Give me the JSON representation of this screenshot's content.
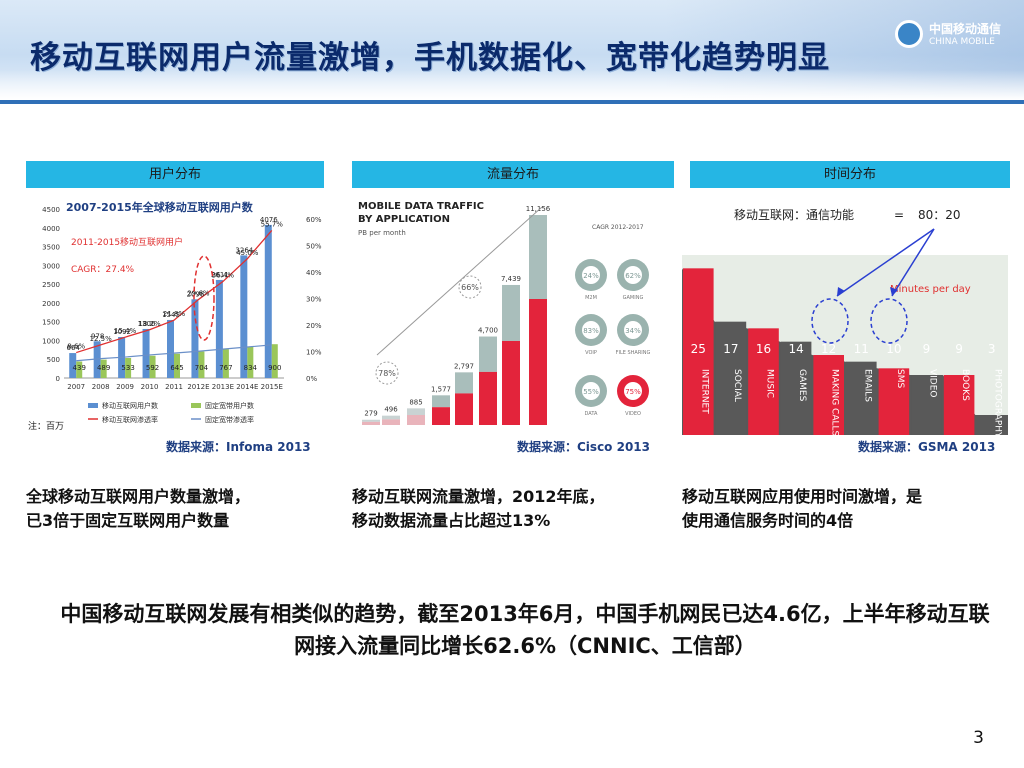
{
  "slide": {
    "title": "移动互联网用户流量激增，手机数据化、宽带化趋势明显",
    "logo_cn": "中国移动通信",
    "logo_en": "CHINA MOBILE",
    "page_number": "3",
    "conclusion": "中国移动互联网发展有相类似的趋势，截至2013年6月，中国手机网民已达4.6亿，上半年移动互联网接入流量同比增长62.6%（CNNIC、工信部）"
  },
  "panels": [
    {
      "head": "用户分布",
      "source": "数据来源：Infoma 2013",
      "caption_line1": "全球移动互联网用户数量激增，",
      "caption_line2": "已3倍于固定互联网用户数量"
    },
    {
      "head": "流量分布",
      "source": "数据来源：Cisco 2013",
      "caption_line1": "移动互联网流量激增，2012年底，",
      "caption_line2": "移动数据流量占比超过13%"
    },
    {
      "head": "时间分布",
      "source": "数据来源：GSMA 2013",
      "caption_line1": "移动互联网应用使用时间激增，是",
      "caption_line2": "使用通信服务时间的4倍"
    }
  ],
  "chart_data": [
    {
      "type": "bar",
      "title": "2007-2015年全球移动互联网用户数",
      "annotation": "2011-2015移动互联网用户",
      "cagr": "CAGR：27.4%",
      "unit_note": "注：百万",
      "categories": [
        "2007",
        "2008",
        "2009",
        "2010",
        "2011",
        "2012E",
        "2013E",
        "2014E",
        "2015E"
      ],
      "ylim": [
        0,
        4500
      ],
      "y_ticks": [
        0,
        500,
        1000,
        1500,
        2000,
        2500,
        3000,
        3500,
        4000,
        4500
      ],
      "y2_ticks": [
        "0%",
        "10%",
        "20%",
        "30%",
        "40%",
        "50%",
        "60%"
      ],
      "series": [
        {
          "name": "移动互联网用户数",
          "values": [
            664,
            978,
            1092,
            1306,
            1545,
            2096,
            2611,
            3264,
            4076
          ],
          "color": "#5b8fd1"
        },
        {
          "name": "固定宽带用户数",
          "values": [
            439,
            489,
            533,
            592,
            645,
            704,
            767,
            834,
            900
          ],
          "color": "#9ac65a"
        },
        {
          "name": "移动互联网渗透率",
          "values": [
            9.6,
            12.5,
            15.4,
            18.2,
            21.8,
            29.6,
            36.4,
            45.0,
            55.7
          ],
          "color": "#e03030"
        },
        {
          "name": "固定宽带渗透率",
          "values": [
            6.5,
            7.3,
            7.9,
            8.7,
            9.4,
            10.1,
            10.9,
            11.7,
            12.5
          ],
          "color": "#6a8fc8"
        }
      ],
      "pct_labels": [
        "9.6%",
        "12.5%",
        "15.4%",
        "18.2%",
        "21.8%",
        "29.6%",
        "36.4%",
        "45.0%",
        "55.7%"
      ]
    },
    {
      "type": "bar",
      "title": "MOBILE DATA TRAFFIC BY APPLICATION",
      "ylabel": "PB per month",
      "cagr_label": "CAGR 2012-2017",
      "values": [
        279,
        496,
        885,
        1577,
        2797,
        4700,
        7439,
        11156
      ],
      "value_labels": [
        "279",
        "496",
        "885",
        "1,577",
        "2,797",
        "4,700",
        "7,439",
        "11,156"
      ],
      "circles": [
        "78%",
        "66%"
      ],
      "donuts": [
        {
          "label": "M2M",
          "value": "24%"
        },
        {
          "label": "GAMING",
          "value": "62%"
        },
        {
          "label": "VOIP",
          "value": "83%"
        },
        {
          "label": "FILE SHARING",
          "value": "34%"
        },
        {
          "label": "DATA",
          "value": "55%"
        },
        {
          "label": "VIDEO",
          "value": "75%"
        }
      ]
    },
    {
      "type": "area",
      "ratio_label": "移动互联网：通信功能",
      "ratio_eq": "=",
      "ratio_value": "80：20",
      "legend": "Minutes per day",
      "categories": [
        "INTERNET",
        "SOCIAL",
        "MUSIC",
        "GAMES",
        "MAKING CALLS",
        "EMAILS",
        "SMS",
        "VIDEO",
        "BOOKS",
        "PHOTOGRAPHY"
      ],
      "values": [
        25,
        17,
        16,
        14,
        12,
        11,
        10,
        9,
        9,
        3
      ]
    }
  ]
}
